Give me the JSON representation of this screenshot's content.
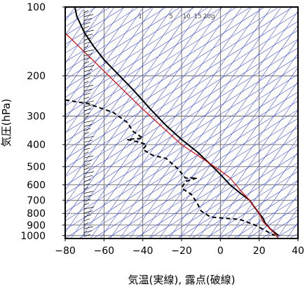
{
  "chart_data": {
    "type": "line",
    "xlabel": "気温(実線), 露点(破線)",
    "ylabel": "気圧(hPa)",
    "xlim": [
      -80,
      40
    ],
    "ylim": [
      1030,
      100
    ],
    "y_scale": "log",
    "x_ticks": [
      -80,
      -60,
      -40,
      -20,
      0,
      20,
      40
    ],
    "x_tick_labels": [
      "−80",
      "−60",
      "−40",
      "−20",
      "0",
      "20",
      "40"
    ],
    "y_ticks": [
      100,
      200,
      300,
      400,
      500,
      600,
      700,
      800,
      900,
      1000
    ],
    "y_tick_labels": [
      "100",
      "200",
      "300",
      "400",
      "500",
      "600",
      "700",
      "800",
      "900",
      "1000"
    ],
    "mixing_ratio_labels": [
      "1",
      "5",
      "10",
      "15",
      "20g"
    ],
    "grid": true,
    "series": [
      {
        "style": "solid-black",
        "points": [
          [
            -75,
            100
          ],
          [
            -74,
            110
          ],
          [
            -70,
            130
          ],
          [
            -65,
            150
          ],
          [
            -60,
            170
          ],
          [
            -52,
            200
          ],
          [
            -45,
            230
          ],
          [
            -36,
            280
          ],
          [
            -28,
            330
          ],
          [
            -20,
            380
          ],
          [
            -12,
            430
          ],
          [
            -6,
            480
          ],
          [
            0,
            540
          ],
          [
            5,
            600
          ],
          [
            10,
            650
          ],
          [
            15,
            700
          ],
          [
            19,
            780
          ],
          [
            20,
            800
          ],
          [
            22,
            840
          ],
          [
            23,
            880
          ],
          [
            26,
            940
          ],
          [
            30,
            1000
          ]
        ]
      },
      {
        "style": "dashed-black",
        "points": [
          [
            -80,
            255
          ],
          [
            -68,
            265
          ],
          [
            -55,
            290
          ],
          [
            -48,
            320
          ],
          [
            -45,
            350
          ],
          [
            -40,
            375
          ],
          [
            -48,
            380
          ],
          [
            -42,
            390
          ],
          [
            -38,
            400
          ],
          [
            -40,
            420
          ],
          [
            -35,
            445
          ],
          [
            -28,
            460
          ],
          [
            -22,
            510
          ],
          [
            -18,
            560
          ],
          [
            -12,
            560
          ],
          [
            -18,
            580
          ],
          [
            -20,
            620
          ],
          [
            -15,
            660
          ],
          [
            -12,
            720
          ],
          [
            -10,
            780
          ],
          [
            -5,
            830
          ],
          [
            10,
            850
          ],
          [
            18,
            900
          ],
          [
            28,
            1000
          ]
        ]
      },
      {
        "style": "solid-red",
        "points": [
          [
            -80,
            130
          ],
          [
            -40,
            280
          ],
          [
            -20,
            400
          ],
          [
            0,
            520
          ],
          [
            5,
            560
          ],
          [
            10,
            630
          ],
          [
            15,
            700
          ],
          [
            20,
            800
          ],
          [
            22,
            870
          ],
          [
            27,
            960
          ],
          [
            30,
            1030
          ]
        ]
      }
    ]
  }
}
